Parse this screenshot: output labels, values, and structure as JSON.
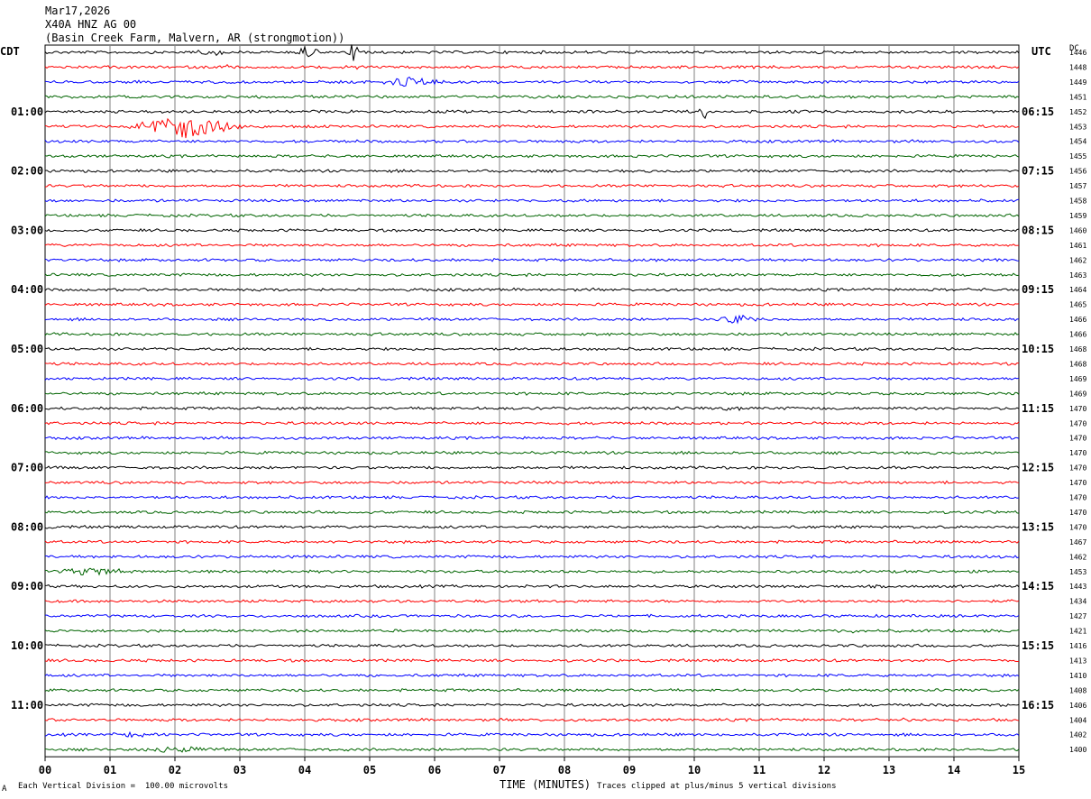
{
  "header": {
    "line1": "Mar17,2026",
    "line2": "X40A HNZ AG 00",
    "line3": "(Basin Creek Farm, Malvern, AR (strongmotion))"
  },
  "left_axis_title": "CDT",
  "right_axis_title": "UTC",
  "dc_title": "DC",
  "footer": {
    "scale_note": "Each Vertical Division =  100.00 microvolts",
    "xlabel": "TIME (MINUTES)",
    "clip_note": "Traces clipped at plus/minus 5 vertical divisions",
    "corner_mark": "A"
  },
  "chart_data": {
    "type": "line",
    "x_ticks": [
      "00",
      "01",
      "02",
      "03",
      "04",
      "05",
      "06",
      "07",
      "08",
      "09",
      "10",
      "11",
      "12",
      "13",
      "14",
      "15"
    ],
    "xlim": [
      0,
      15
    ],
    "grid": true,
    "trace_colors": [
      "#000000",
      "#ff0000",
      "#0000ff",
      "#006400"
    ],
    "left_hour_labels": [
      "01:00",
      "02:00",
      "03:00",
      "04:00",
      "05:00",
      "06:00",
      "07:00",
      "08:00",
      "09:00",
      "10:00",
      "11:00"
    ],
    "right_hour_labels": [
      "06:15",
      "07:15",
      "08:15",
      "09:15",
      "10:15",
      "11:15",
      "12:15",
      "13:15",
      "14:15",
      "15:15",
      "16:15"
    ],
    "dc_values": [
      "1446",
      "1448",
      "1449",
      "1451",
      "1452",
      "1453",
      "1454",
      "1455",
      "1456",
      "1457",
      "1458",
      "1459",
      "1460",
      "1461",
      "1462",
      "1463",
      "1464",
      "1465",
      "1466",
      "1466",
      "1468",
      "1468",
      "1469",
      "1469",
      "1470",
      "1470",
      "1470",
      "1470",
      "1470",
      "1470",
      "1470",
      "1470",
      "1470",
      "1467",
      "1462",
      "1453",
      "1443",
      "1434",
      "1427",
      "1421",
      "1416",
      "1413",
      "1410",
      "1408",
      "1406",
      "1404",
      "1402",
      "1400"
    ],
    "events": [
      {
        "trace": 0,
        "minute": 4.75,
        "amplitude": 1.0,
        "duration": 0.1
      },
      {
        "trace": 0,
        "minute": 4.05,
        "amplitude": 0.6,
        "duration": 0.2
      },
      {
        "trace": 0,
        "minute": 2.5,
        "amplitude": 0.35,
        "duration": 0.3
      },
      {
        "trace": 1,
        "minute": 2.75,
        "amplitude": 0.5,
        "duration": 0.1
      },
      {
        "trace": 1,
        "minute": 4.8,
        "amplitude": 0.2,
        "duration": 0.3
      },
      {
        "trace": 2,
        "minute": 5.6,
        "amplitude": 0.5,
        "duration": 0.5
      },
      {
        "trace": 4,
        "minute": 10.15,
        "amplitude": 0.8,
        "duration": 0.1
      },
      {
        "trace": 5,
        "minute": 2.15,
        "amplitude": 1.0,
        "duration": 1.0
      },
      {
        "trace": 18,
        "minute": 10.65,
        "amplitude": 0.35,
        "duration": 0.5
      },
      {
        "trace": 24,
        "minute": 10.6,
        "amplitude": 0.15,
        "duration": 0.3
      },
      {
        "trace": 35,
        "minute": 0.7,
        "amplitude": 0.35,
        "duration": 0.6
      },
      {
        "trace": 39,
        "minute": 12.3,
        "amplitude": 0.15,
        "duration": 0.3
      },
      {
        "trace": 45,
        "minute": 13.3,
        "amplitude": 0.1,
        "duration": 0.3
      },
      {
        "trace": 46,
        "minute": 1.3,
        "amplitude": 0.15,
        "duration": 0.6
      },
      {
        "trace": 47,
        "minute": 2.1,
        "amplitude": 0.25,
        "duration": 0.8
      }
    ]
  }
}
